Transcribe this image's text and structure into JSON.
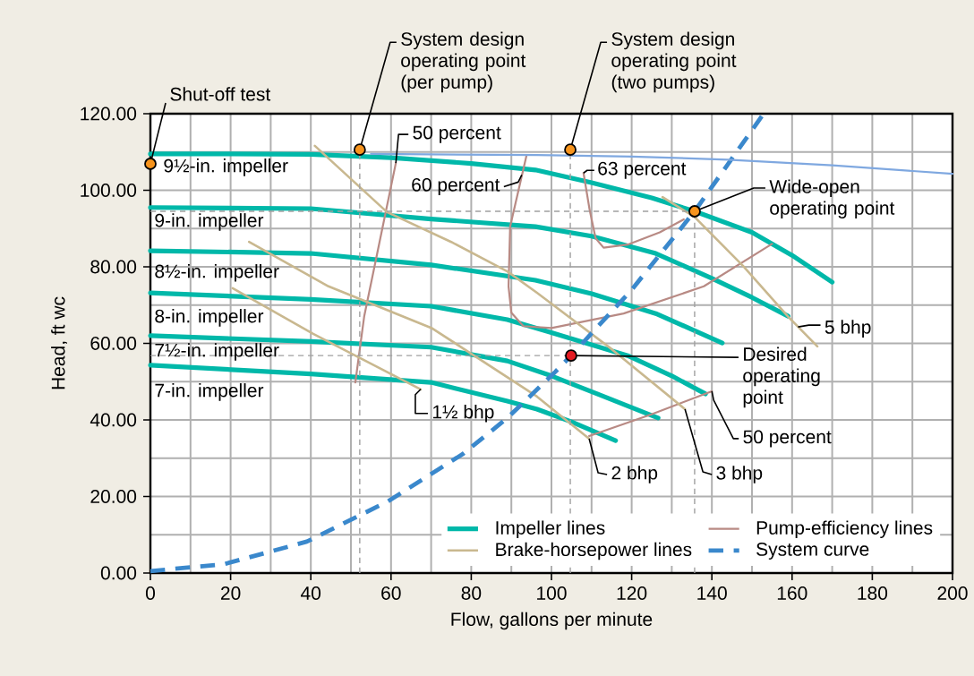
{
  "chart_data": {
    "type": "line",
    "xlabel": "Flow, gallons per minute",
    "ylabel": "Head, ft wc",
    "xlim": [
      0,
      200
    ],
    "ylim": [
      0,
      120
    ],
    "xticks": [
      0,
      20,
      40,
      60,
      80,
      100,
      120,
      140,
      160,
      180,
      200
    ],
    "yticks": [
      {
        "value": 0,
        "label": "0.00"
      },
      {
        "value": 20,
        "label": "20.00"
      },
      {
        "value": 40,
        "label": "40.00"
      },
      {
        "value": 60,
        "label": "60.00"
      },
      {
        "value": 80,
        "label": "80.00"
      },
      {
        "value": 100,
        "label": "100.00"
      },
      {
        "value": 120,
        "label": "120.00"
      }
    ],
    "grid": true,
    "legend": "bottom right",
    "series": [
      {
        "name": "Impeller lines",
        "color": "#00b8a9",
        "x": [
          0,
          20,
          40,
          60,
          80,
          96,
          110,
          125,
          135.7,
          150,
          160,
          170
        ],
        "values": [
          109.5,
          109.5,
          109.4,
          108.5,
          107,
          105.3,
          102,
          98,
          94.5,
          89,
          83,
          76
        ]
      },
      {
        "color": "#00b8a9",
        "x": [
          0,
          40,
          70,
          96,
          110,
          126,
          140,
          150,
          159
        ],
        "values": [
          95.5,
          95.2,
          92.5,
          90.5,
          88,
          83.5,
          77,
          72,
          67.1
        ]
      },
      {
        "color": "#00b8a9",
        "x": [
          0,
          40,
          70,
          96,
          110,
          126,
          142.6
        ],
        "values": [
          84.2,
          83.5,
          80.5,
          76.5,
          73,
          67.8,
          60.1
        ]
      },
      {
        "color": "#00b8a9",
        "x": [
          0,
          40,
          70,
          89,
          100,
          119,
          130,
          138.4
        ],
        "values": [
          73.2,
          71.5,
          69.7,
          66.2,
          62.8,
          56.8,
          51.5,
          46.8
        ]
      },
      {
        "color": "#00b8a9",
        "x": [
          0,
          40,
          70,
          89,
          100,
          111.4,
          126.6
        ],
        "values": [
          62,
          60.5,
          59,
          55.4,
          51.5,
          46.8,
          40.5
        ]
      },
      {
        "color": "#00b8a9",
        "x": [
          0,
          40,
          70,
          89,
          96.4,
          105,
          116
        ],
        "values": [
          54.3,
          52,
          49.8,
          44.9,
          42.8,
          39.5,
          34.6
        ]
      },
      {
        "name": "Pump-efficiency lines",
        "color": "#b88a84",
        "x": [
          61.2,
          57,
          53.3,
          51.1
        ],
        "values": [
          107.1,
          85.8,
          67,
          49.8
        ]
      },
      {
        "color": "#b88a84",
        "x": [
          93.8,
          89.7,
          89.3,
          90,
          93,
          100,
          118,
          138,
          155
        ],
        "values": [
          109.2,
          90.5,
          74.9,
          68,
          64.5,
          64,
          67.8,
          74.9,
          86
        ]
      },
      {
        "color": "#b88a84",
        "x": [
          108,
          109.5,
          111,
          113,
          119,
          127,
          133
        ],
        "values": [
          104.5,
          95,
          87.5,
          85,
          85.8,
          89,
          92.4
        ]
      },
      {
        "color": "#b88a84",
        "x": [
          109.4,
          124.8,
          140
        ],
        "values": [
          35.8,
          41.4,
          47.5
        ]
      },
      {
        "name": "Brake-horsepower lines",
        "color": "#c9b88f",
        "x": [
          20.5,
          40.6,
          67.4
        ],
        "values": [
          74.4,
          62.5,
          48
        ]
      },
      {
        "color": "#c9b88f",
        "x": [
          24.6,
          44.4,
          70.3,
          96.4,
          109.4
        ],
        "values": [
          86.5,
          74.9,
          63.9,
          46.1,
          35.1
        ]
      },
      {
        "color": "#c9b88f",
        "x": [
          41,
          59,
          75,
          89,
          96.4,
          115,
          133.3
        ],
        "values": [
          111.6,
          94.3,
          86.5,
          78.8,
          73.2,
          58.5,
          42.8
        ]
      },
      {
        "color": "#c9b88f",
        "x": [
          127.7,
          135.7,
          147.8,
          159,
          166.3
        ],
        "values": [
          98.2,
          93,
          80.2,
          67,
          59.2
        ]
      },
      {
        "name": "System curve",
        "color": "#3a88cc",
        "line_style": "dashed",
        "x": [
          0,
          18.3,
          39,
          59.2,
          77.9,
          89,
          101,
          104.9,
          120,
          135.7,
          152.9
        ],
        "values": [
          0.5,
          2.3,
          8.2,
          18.7,
          31.1,
          40.5,
          52.6,
          56.8,
          74,
          94.5,
          120
        ]
      },
      {
        "color": "#7fa8e0",
        "x": [
          55,
          96.4,
          120,
          144,
          170,
          200
        ],
        "values": [
          109.5,
          109.2,
          108.8,
          108,
          106.5,
          104.3
        ]
      },
      {
        "color": "#a0a0a0",
        "line_style": "dashed",
        "x": [
          52.2,
          52.2
        ],
        "values": [
          0,
          110.6
        ]
      },
      {
        "color": "#a0a0a0",
        "line_style": "dashed",
        "x": [
          104.7,
          104.7
        ],
        "values": [
          0,
          110.6
        ]
      },
      {
        "color": "#a0a0a0",
        "line_style": "dashed",
        "x": [
          135.7,
          135.7
        ],
        "values": [
          0,
          94.5
        ]
      },
      {
        "color": "#a0a0a0",
        "line_style": "dashed",
        "x": [
          0,
          135.7
        ],
        "values": [
          94.5,
          94.5
        ]
      },
      {
        "color": "#a0a0a0",
        "line_style": "dashed",
        "x": [
          0,
          104.9
        ],
        "values": [
          56.8,
          56.8
        ]
      },
      {
        "type": "scatter",
        "marker": "circle",
        "color": "#f7941d",
        "x": [
          0,
          52.2,
          104.7,
          135.7
        ],
        "values": [
          106.9,
          110.6,
          110.6,
          94.5
        ]
      },
      {
        "type": "scatter",
        "marker": "circle",
        "color": "#e31b23",
        "x": [
          104.9
        ],
        "values": [
          56.8
        ]
      }
    ],
    "annotations": [
      {
        "text": "Shut-off test",
        "x": 0,
        "y": 106.9
      },
      {
        "text": "System design operating point (per pump)",
        "x": 52.2,
        "y": 110.6
      },
      {
        "text": "System design operating point (two pumps)",
        "x": 104.7,
        "y": 110.6
      },
      {
        "text": "Wide-open operating point",
        "x": 135.7,
        "y": 94.5
      },
      {
        "text": "Desired operating point",
        "x": 104.9,
        "y": 56.8
      },
      {
        "text": "9½-in. impeller",
        "x": 0,
        "y": 109.5
      },
      {
        "text": "9-in. impeller",
        "x": 0,
        "y": 95.5
      },
      {
        "text": "8½-in. impeller",
        "x": 0,
        "y": 84.2
      },
      {
        "text": "8-in. impeller",
        "x": 0,
        "y": 73.2
      },
      {
        "text": "7½-in. impeller",
        "x": 0,
        "y": 62
      },
      {
        "text": "7-in. impeller",
        "x": 0,
        "y": 54.3
      },
      {
        "text": "50 percent",
        "x": 61.2,
        "y": 107.1
      },
      {
        "text": "60 percent",
        "x": 92.6,
        "y": 104
      },
      {
        "text": "63 percent",
        "x": 108,
        "y": 104.5
      },
      {
        "text": "1½ bhp",
        "x": 67.4,
        "y": 48
      },
      {
        "text": "2 bhp",
        "x": 109.4,
        "y": 35.1
      },
      {
        "text": "3 bhp",
        "x": 133.3,
        "y": 42.8
      },
      {
        "text": "50 percent",
        "x": 140,
        "y": 47.5
      },
      {
        "text": "5 bhp",
        "x": 161.5,
        "y": 64.3
      }
    ]
  }
}
